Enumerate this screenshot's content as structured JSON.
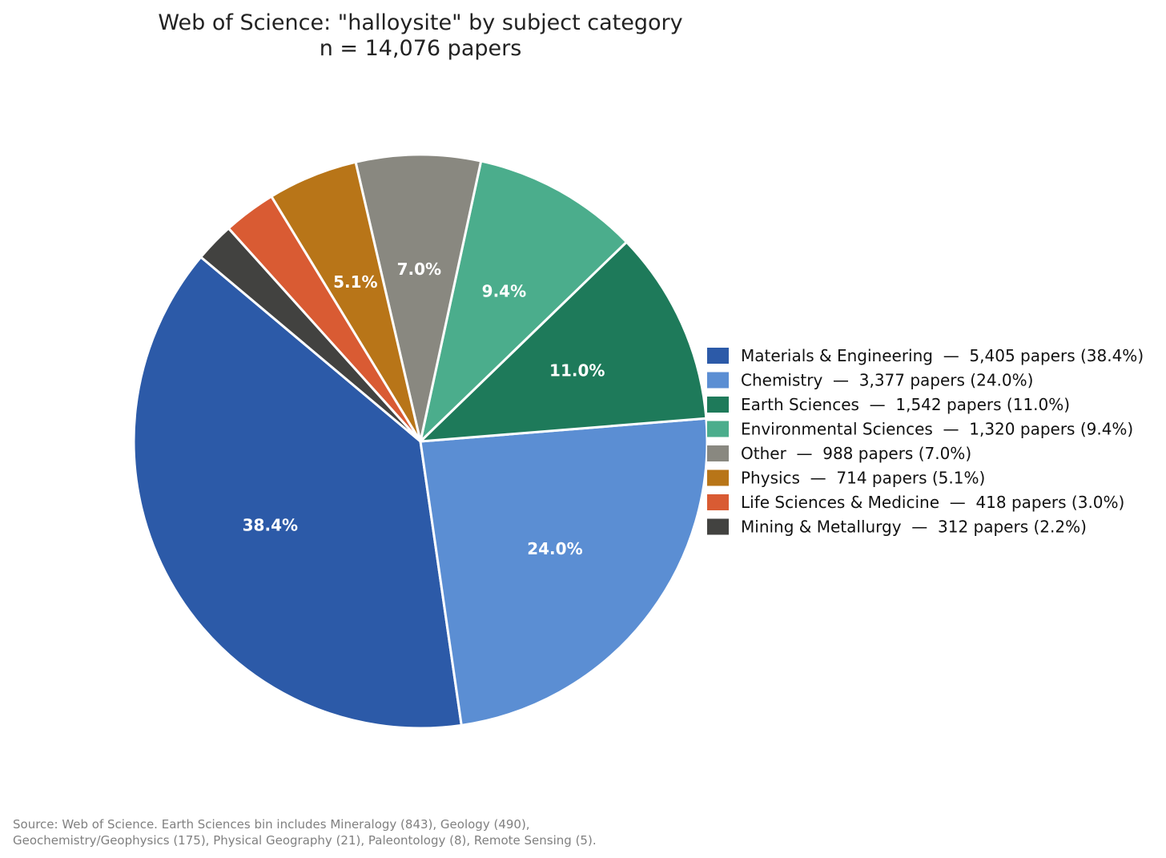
{
  "chart_data": {
    "type": "pie",
    "title": "Web of Science: \"halloysite\" by subject category",
    "subtitle": "n = 14,076 papers",
    "start_angle_deg": 140,
    "direction": "counterclockwise",
    "legend_position": "center-right",
    "slices": [
      {
        "name": "Materials & Engineering",
        "value": 5405,
        "percent_label": "38.4%",
        "legend_text": "Materials & Engineering  —  5,405 papers (38.4%)",
        "color": "#2c5aa8",
        "show_label": true
      },
      {
        "name": "Chemistry",
        "value": 3377,
        "percent_label": "24.0%",
        "legend_text": "Chemistry  —  3,377 papers (24.0%)",
        "color": "#5b8ed3",
        "show_label": true
      },
      {
        "name": "Earth Sciences",
        "value": 1542,
        "percent_label": "11.0%",
        "legend_text": "Earth Sciences  —  1,542 papers (11.0%)",
        "color": "#1e7a5a",
        "show_label": true
      },
      {
        "name": "Environmental Sciences",
        "value": 1320,
        "percent_label": "9.4%",
        "legend_text": "Environmental Sciences  —  1,320 papers (9.4%)",
        "color": "#4bad8c",
        "show_label": true
      },
      {
        "name": "Other",
        "value": 988,
        "percent_label": "7.0%",
        "legend_text": "Other  —  988 papers (7.0%)",
        "color": "#898880",
        "show_label": true
      },
      {
        "name": "Physics",
        "value": 714,
        "percent_label": "5.1%",
        "legend_text": "Physics  —  714 papers (5.1%)",
        "color": "#b87518",
        "show_label": true
      },
      {
        "name": "Life Sciences & Medicine",
        "value": 418,
        "percent_label": "3.0%",
        "legend_text": "Life Sciences & Medicine  —  418 papers (3.0%)",
        "color": "#d95b33",
        "show_label": false
      },
      {
        "name": "Mining & Metallurgy",
        "value": 312,
        "percent_label": "2.2%",
        "legend_text": "Mining & Metallurgy  —  312 papers (2.2%)",
        "color": "#424240",
        "show_label": false
      }
    ]
  },
  "source_note": {
    "line1": "Source: Web of Science. Earth Sciences bin includes Mineralogy (843), Geology (490),",
    "line2": "Geochemistry/Geophysics (175), Physical Geography (21), Paleontology (8), Remote Sensing (5)."
  }
}
